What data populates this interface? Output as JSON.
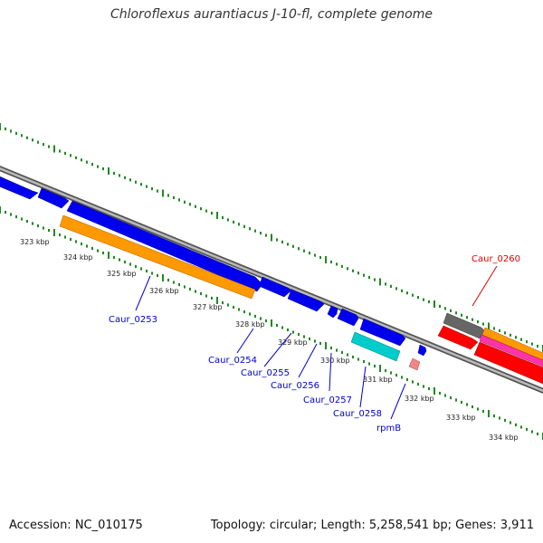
{
  "title": "Chloroflexus aurantiacus J-10-fl, complete genome",
  "footer": {
    "accession": "Accession: NC_010175",
    "topology": "Topology: circular; Length: 5,258,541 bp; Genes: 3,911"
  },
  "colors": {
    "forward_gene": "#0000ee",
    "orange_gene": "#ff9900",
    "cyan_gene": "#00cccc",
    "pink_gene": "#ee8888",
    "red_gene": "#ff0000",
    "dark_gene": "#666666",
    "magenta_gene": "#ff33aa",
    "tick": "#228822",
    "backbone": "#888888",
    "label_blue": "#0000cc",
    "label_red": "#dd0000"
  },
  "ruler": [
    "323 kbp",
    "324 kbp",
    "325 kbp",
    "326 kbp",
    "327 kbp",
    "328 kbp",
    "329 kbp",
    "330 kbp",
    "331 kbp",
    "332 kbp",
    "333 kbp",
    "334 kbp"
  ],
  "gene_labels": [
    "Caur_0253",
    "Caur_0254",
    "Caur_0255",
    "Caur_0256",
    "Caur_0257",
    "Caur_0258",
    "rpmB",
    "Caur_0260"
  ]
}
